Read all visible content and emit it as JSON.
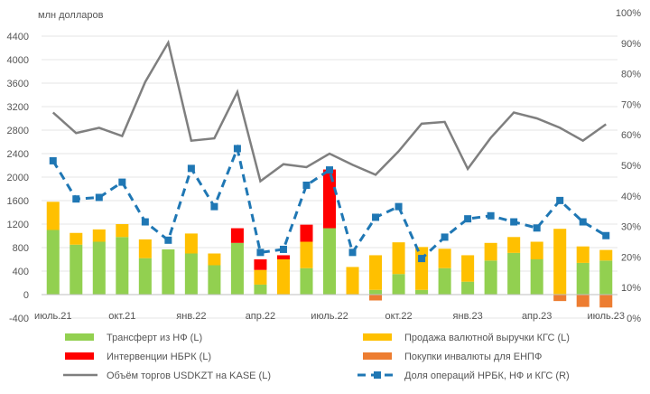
{
  "chart_data": {
    "type": "bar",
    "ylabel": "млн долларов",
    "ylim": [
      -400,
      4800
    ],
    "ylim_right": [
      0,
      100
    ],
    "yticks": [
      "-400",
      "0",
      "400",
      "800",
      "1200",
      "1600",
      "2000",
      "2400",
      "2800",
      "3200",
      "3600",
      "4000",
      "4400"
    ],
    "yticks_right": [
      "0%",
      "10%",
      "20%",
      "30%",
      "40%",
      "50%",
      "60%",
      "70%",
      "80%",
      "90%",
      "100%"
    ],
    "x_tick_labels": [
      {
        "index": 0,
        "label": "июль.21"
      },
      {
        "index": 3,
        "label": "окт.21"
      },
      {
        "index": 6,
        "label": "янв.22"
      },
      {
        "index": 9,
        "label": "апр.22"
      },
      {
        "index": 12,
        "label": "июль.22"
      },
      {
        "index": 15,
        "label": "окт.22"
      },
      {
        "index": 18,
        "label": "янв.23"
      },
      {
        "index": 21,
        "label": "апр.23"
      },
      {
        "index": 24,
        "label": "июль.23"
      }
    ],
    "categories": [
      "2021-07",
      "2021-08",
      "2021-09",
      "2021-10",
      "2021-11",
      "2021-12",
      "2022-01",
      "2022-02",
      "2022-03",
      "2022-04",
      "2022-05",
      "2022-06",
      "2022-07",
      "2022-08",
      "2022-09",
      "2022-10",
      "2022-11",
      "2022-12",
      "2023-01",
      "2023-02",
      "2023-03",
      "2023-04",
      "2023-05",
      "2023-06",
      "2023-07"
    ],
    "series": [
      {
        "name": "Трансферт из НФ (L)",
        "type": "bar",
        "axis": "left",
        "color": "#92d050",
        "values": [
          1100,
          850,
          900,
          980,
          620,
          770,
          700,
          500,
          880,
          170,
          0,
          450,
          1130,
          0,
          80,
          350,
          80,
          450,
          220,
          580,
          710,
          600,
          0,
          540,
          580
        ]
      },
      {
        "name": "Продажа валютной выручки КГС (L)",
        "type": "bar",
        "axis": "left",
        "color": "#ffc000",
        "values": [
          480,
          200,
          210,
          220,
          320,
          0,
          340,
          200,
          0,
          250,
          600,
          450,
          0,
          470,
          590,
          540,
          730,
          330,
          450,
          300,
          270,
          300,
          1120,
          280,
          180
        ]
      },
      {
        "name": "Интервенции НБРК (L)",
        "type": "bar",
        "axis": "left",
        "color": "#ff0000",
        "values": [
          0,
          0,
          0,
          0,
          0,
          0,
          0,
          0,
          250,
          180,
          70,
          290,
          1000,
          0,
          0,
          0,
          0,
          0,
          0,
          0,
          0,
          0,
          0,
          0,
          0
        ]
      },
      {
        "name": "Покупки инвалюты для ЕНПФ",
        "type": "bar",
        "axis": "left",
        "color": "#ed7d31",
        "values": [
          0,
          0,
          0,
          0,
          0,
          0,
          0,
          0,
          0,
          0,
          0,
          0,
          0,
          0,
          -100,
          0,
          0,
          0,
          0,
          0,
          0,
          0,
          -110,
          -210,
          -220
        ]
      },
      {
        "name": "Объём торгов USDKZT на KASE (L)",
        "type": "line",
        "axis": "left",
        "color": "#7f7f7f",
        "values": [
          3100,
          2750,
          2840,
          2700,
          3620,
          4290,
          2620,
          2660,
          3450,
          1930,
          2220,
          2170,
          2400,
          2210,
          2040,
          2440,
          2910,
          2940,
          2140,
          2670,
          3100,
          3000,
          2840,
          2620,
          2900
        ]
      },
      {
        "name": "Доля операций НРБК, НФ и КГС (R)",
        "type": "line",
        "axis": "right",
        "color": "#1f77b4",
        "values": [
          51.5,
          39,
          39.5,
          44.5,
          31.5,
          25.5,
          49,
          36.5,
          55.5,
          21.5,
          22.5,
          43.5,
          48.5,
          21.5,
          33,
          36.5,
          19.5,
          26.5,
          32.5,
          33.5,
          31.5,
          29.5,
          38.5,
          31.5,
          27
        ]
      }
    ]
  }
}
